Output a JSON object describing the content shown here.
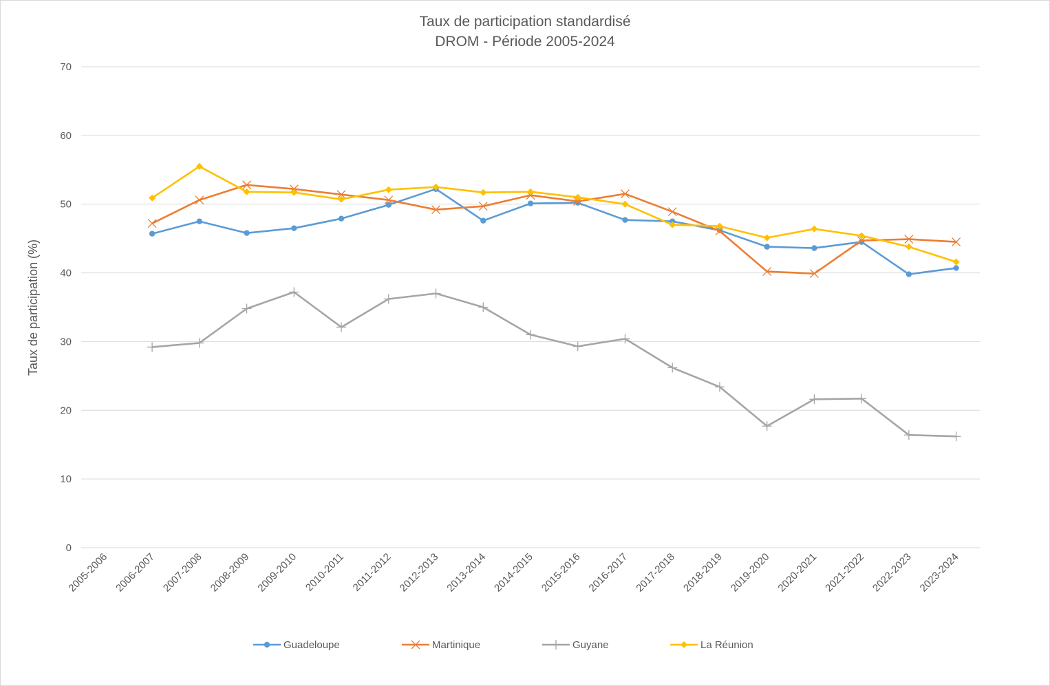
{
  "chart_data": {
    "type": "line",
    "title": "Taux de participation standardisé",
    "subtitle": "DROM - Période 2005-2024",
    "xlabel": "",
    "ylabel": "Taux de participation (%)",
    "ylim": [
      0,
      70
    ],
    "yticks": [
      0,
      10,
      20,
      30,
      40,
      50,
      60,
      70
    ],
    "grid": true,
    "legend_position": "bottom",
    "categories": [
      "2005-2006",
      "2006-2007",
      "2007-2008",
      "2008-2009",
      "2009-2010",
      "2010-2011",
      "2011-2012",
      "2012-2013",
      "2013-2014",
      "2014-2015",
      "2015-2016",
      "2016-2017",
      "2017-2018",
      "2018-2019",
      "2019-2020",
      "2020-2021",
      "2021-2022",
      "2022-2023",
      "2023-2024"
    ],
    "series": [
      {
        "name": "Guadeloupe",
        "color": "#5B9BD5",
        "marker": "circle",
        "values": [
          null,
          45.7,
          47.5,
          45.8,
          46.5,
          47.9,
          49.9,
          52.2,
          47.6,
          50.1,
          50.2,
          47.7,
          47.5,
          46.2,
          43.8,
          43.6,
          44.5,
          39.8,
          40.7
        ]
      },
      {
        "name": "Martinique",
        "color": "#ED7D31",
        "marker": "x",
        "values": [
          null,
          47.2,
          50.6,
          52.8,
          52.2,
          51.4,
          50.6,
          49.2,
          49.7,
          51.3,
          50.4,
          51.5,
          48.9,
          46.1,
          40.2,
          39.9,
          44.7,
          44.9,
          44.5
        ]
      },
      {
        "name": "Guyane",
        "color": "#A5A5A5",
        "marker": "plus",
        "values": [
          null,
          29.2,
          29.8,
          34.8,
          37.2,
          32.1,
          36.2,
          37.0,
          35.0,
          31.0,
          29.3,
          30.4,
          26.2,
          23.4,
          17.7,
          21.6,
          21.7,
          16.4,
          16.2
        ]
      },
      {
        "name": "La Réunion",
        "color": "#FFC000",
        "marker": "diamond",
        "values": [
          null,
          50.9,
          55.5,
          51.8,
          51.7,
          50.7,
          52.1,
          52.5,
          51.7,
          51.8,
          51.0,
          50.0,
          47.0,
          46.8,
          45.1,
          46.4,
          45.4,
          43.8,
          41.6
        ]
      }
    ]
  }
}
